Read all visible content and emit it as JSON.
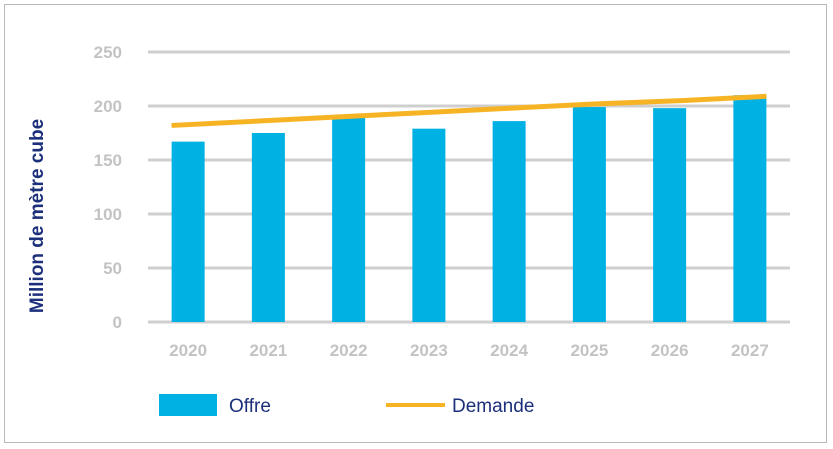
{
  "chart_data": {
    "type": "bar",
    "categories": [
      "2020",
      "2021",
      "2022",
      "2023",
      "2024",
      "2025",
      "2026",
      "2027"
    ],
    "series": [
      {
        "name": "Offre",
        "kind": "bar",
        "color": "#00b1e3",
        "values": [
          167,
          175,
          189,
          179,
          186,
          199,
          198,
          210
        ]
      },
      {
        "name": "Demande",
        "kind": "line",
        "color": "#f6b324",
        "values": [
          182,
          186,
          190,
          194,
          198,
          202,
          205,
          209
        ]
      }
    ],
    "ylabel": "Million de mètre cube",
    "ylim": [
      0,
      250
    ],
    "yticks": [
      0,
      50,
      100,
      150,
      200,
      250
    ],
    "grid": true,
    "legend": "bottom-left",
    "colors": {
      "grid": "#cfcfcf",
      "tick": "#c3c3c3",
      "label": "#1b2f7a"
    }
  }
}
